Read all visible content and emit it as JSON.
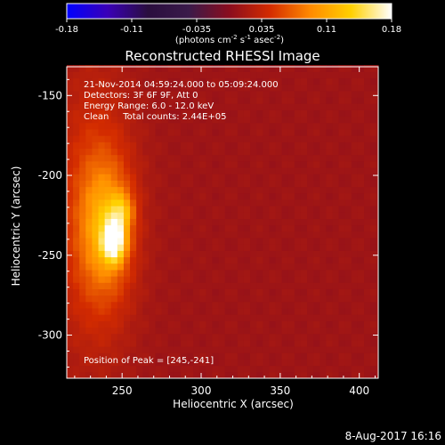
{
  "chart_data": {
    "type": "heatmap",
    "title": "Reconstructed RHESSI Image",
    "xlabel": "Heliocentric X (arcsec)",
    "ylabel": "Heliocentric Y (arcsec)",
    "xlim": [
      215,
      412
    ],
    "ylim": [
      -327,
      -132
    ],
    "x_ticks": [
      250,
      300,
      350,
      400
    ],
    "y_ticks": [
      -150,
      -200,
      -250,
      -300
    ],
    "colorbar": {
      "range": [
        -0.18,
        0.18
      ],
      "ticks": [
        "-0.18",
        "-0.11",
        "-0.035",
        "0.035",
        "0.11",
        "0.18"
      ],
      "unit_label": {
        "pre": "(photons cm",
        "exp1": "-2",
        "mid1": " s",
        "exp2": "-1",
        "mid2": " asec",
        "exp3": "-2",
        "post": ")"
      },
      "colormap": [
        "#0000ff",
        "#3a00b8",
        "#2a0e3e",
        "#3a1a4a",
        "#8a0d1e",
        "#d32b00",
        "#ff8a00",
        "#ffd000",
        "#ffffff"
      ]
    },
    "info_lines": [
      "21-Nov-2014 04:59:24.000 to 05:09:24.000",
      "Detectors: 3F 6F 9F, Att 0",
      "Energy Range: 6.0 - 12.0 keV",
      "Clean     Total counts: 2.44E+05"
    ],
    "peak_annotation": "Position of Peak = [245,-241]",
    "peak": {
      "x": 245,
      "y": -241,
      "value": 0.18
    },
    "background_level": 0.012,
    "sources": [
      {
        "x": 245,
        "y": -241,
        "amp": 0.12,
        "sx": 5,
        "sy": 9
      },
      {
        "x": 250,
        "y": -222,
        "amp": 0.06,
        "sx": 5,
        "sy": 8
      },
      {
        "x": 240,
        "y": -232,
        "amp": 0.07,
        "sx": 11,
        "sy": 28
      },
      {
        "x": 232,
        "y": -225,
        "amp": 0.045,
        "sx": 18,
        "sy": 60
      }
    ],
    "date_stamp": "8-Aug-2017 16:16"
  }
}
